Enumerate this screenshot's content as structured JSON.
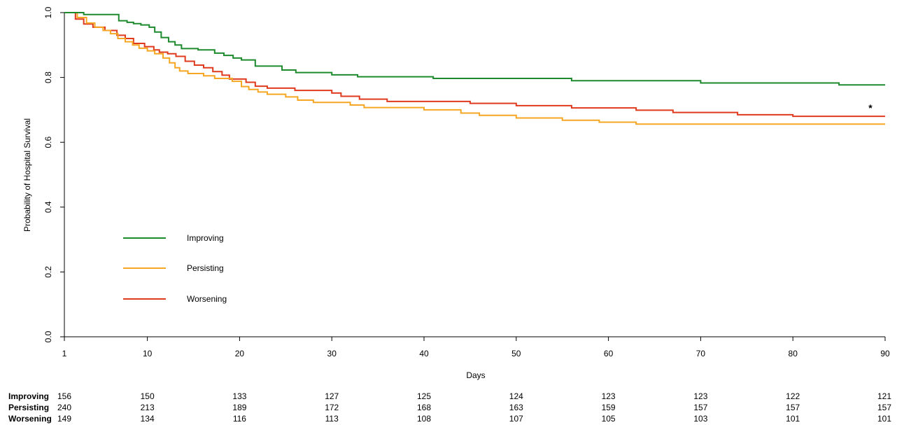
{
  "chart_data": {
    "type": "line",
    "title": "",
    "xlabel": "Days",
    "ylabel": "Probability of Hospital Survival",
    "xlim": [
      1,
      90
    ],
    "ylim": [
      0,
      1
    ],
    "x_ticks": [
      1,
      10,
      20,
      30,
      40,
      50,
      60,
      70,
      80,
      90
    ],
    "y_ticks": [
      "0.0",
      "0.2",
      "0.4",
      "0.6",
      "0.8",
      "1.0"
    ],
    "step": true,
    "grid": false,
    "legend_position": "lower-left",
    "annotation": "*",
    "series": [
      {
        "name": "Improving",
        "color": "#1e8a2e",
        "points": [
          [
            1,
            1.0
          ],
          [
            3.1,
            0.994
          ],
          [
            6.9,
            0.975
          ],
          [
            7.8,
            0.97
          ],
          [
            8.5,
            0.966
          ],
          [
            9.3,
            0.962
          ],
          [
            10.2,
            0.955
          ],
          [
            10.8,
            0.94
          ],
          [
            11.5,
            0.923
          ],
          [
            12.3,
            0.91
          ],
          [
            13,
            0.9
          ],
          [
            13.7,
            0.889
          ],
          [
            15.5,
            0.885
          ],
          [
            17.3,
            0.875
          ],
          [
            18.3,
            0.868
          ],
          [
            19.3,
            0.86
          ],
          [
            20.2,
            0.854
          ],
          [
            21.7,
            0.835
          ],
          [
            24.6,
            0.823
          ],
          [
            26.1,
            0.815
          ],
          [
            30,
            0.808
          ],
          [
            32.8,
            0.802
          ],
          [
            41,
            0.797
          ],
          [
            56,
            0.79
          ],
          [
            70,
            0.783
          ],
          [
            85,
            0.777
          ],
          [
            90,
            0.777
          ]
        ]
      },
      {
        "name": "Persisting",
        "color": "#f5a623",
        "points": [
          [
            1,
            1.0
          ],
          [
            2.4,
            0.985
          ],
          [
            3.4,
            0.968
          ],
          [
            4.3,
            0.955
          ],
          [
            5.2,
            0.945
          ],
          [
            6,
            0.935
          ],
          [
            6.8,
            0.92
          ],
          [
            7.6,
            0.91
          ],
          [
            8.4,
            0.9
          ],
          [
            9.1,
            0.89
          ],
          [
            10,
            0.882
          ],
          [
            10.8,
            0.873
          ],
          [
            11.7,
            0.86
          ],
          [
            12.4,
            0.845
          ],
          [
            13,
            0.83
          ],
          [
            13.5,
            0.82
          ],
          [
            14.4,
            0.812
          ],
          [
            16.1,
            0.805
          ],
          [
            17.3,
            0.797
          ],
          [
            19.2,
            0.788
          ],
          [
            20.2,
            0.772
          ],
          [
            21,
            0.763
          ],
          [
            22,
            0.755
          ],
          [
            23,
            0.748
          ],
          [
            25,
            0.74
          ],
          [
            26.3,
            0.73
          ],
          [
            28,
            0.723
          ],
          [
            32,
            0.715
          ],
          [
            33.5,
            0.707
          ],
          [
            40,
            0.7
          ],
          [
            44,
            0.69
          ],
          [
            46,
            0.683
          ],
          [
            50,
            0.675
          ],
          [
            55,
            0.668
          ],
          [
            59,
            0.662
          ],
          [
            63,
            0.656
          ],
          [
            90,
            0.656
          ]
        ]
      },
      {
        "name": "Worsening",
        "color": "#e03a1e",
        "points": [
          [
            1,
            1.0
          ],
          [
            2.2,
            0.98
          ],
          [
            3.1,
            0.965
          ],
          [
            4.1,
            0.955
          ],
          [
            5.4,
            0.945
          ],
          [
            6.7,
            0.93
          ],
          [
            7.6,
            0.92
          ],
          [
            8.5,
            0.905
          ],
          [
            9.7,
            0.895
          ],
          [
            10.7,
            0.885
          ],
          [
            11.3,
            0.878
          ],
          [
            12.2,
            0.873
          ],
          [
            13.1,
            0.865
          ],
          [
            14.1,
            0.85
          ],
          [
            15.1,
            0.838
          ],
          [
            16.1,
            0.83
          ],
          [
            17.1,
            0.818
          ],
          [
            18.1,
            0.807
          ],
          [
            18.9,
            0.795
          ],
          [
            20.7,
            0.785
          ],
          [
            21.7,
            0.773
          ],
          [
            23,
            0.767
          ],
          [
            26,
            0.76
          ],
          [
            30,
            0.752
          ],
          [
            31,
            0.742
          ],
          [
            33,
            0.733
          ],
          [
            36,
            0.726
          ],
          [
            45,
            0.72
          ],
          [
            50,
            0.713
          ],
          [
            56,
            0.706
          ],
          [
            63,
            0.699
          ],
          [
            67,
            0.692
          ],
          [
            74,
            0.685
          ],
          [
            80,
            0.68
          ],
          [
            90,
            0.68
          ]
        ]
      }
    ],
    "risk_table": [
      {
        "name": "Improving",
        "values": [
          "156",
          "150",
          "133",
          "127",
          "125",
          "124",
          "123",
          "123",
          "122",
          "121"
        ]
      },
      {
        "name": "Persisting",
        "values": [
          "240",
          "213",
          "189",
          "172",
          "168",
          "163",
          "159",
          "157",
          "157",
          "157"
        ]
      },
      {
        "name": "Worsening",
        "values": [
          "149",
          "134",
          "116",
          "113",
          "108",
          "107",
          "105",
          "103",
          "101",
          "101"
        ]
      }
    ]
  }
}
